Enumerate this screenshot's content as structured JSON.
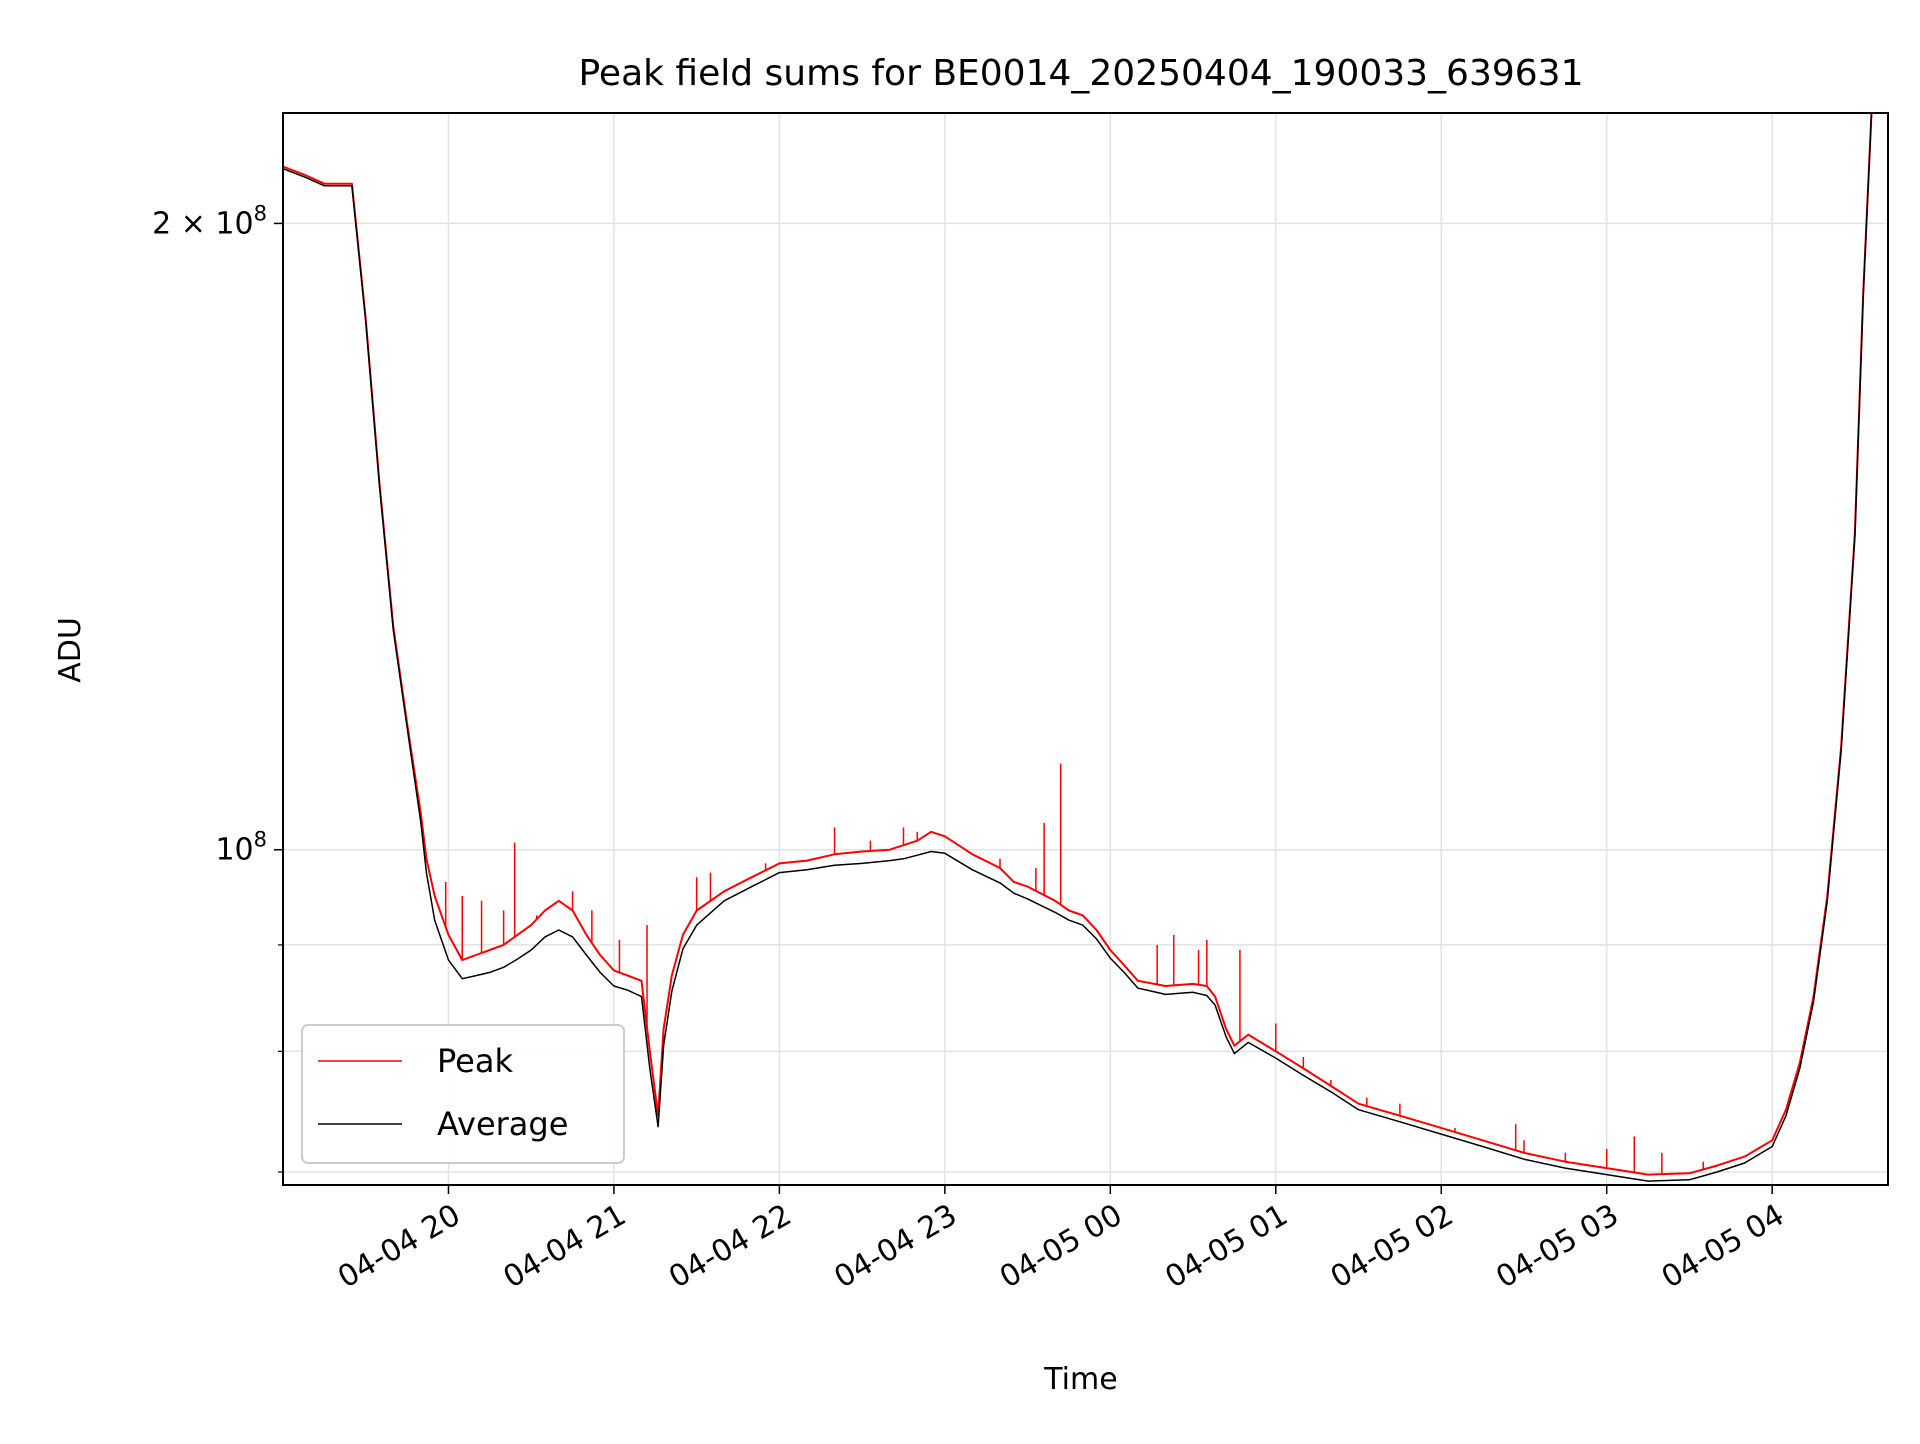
{
  "chart_data": {
    "type": "line",
    "title": "Peak field sums for BE0014_20250404_190033_639631",
    "xlabel": "Time",
    "ylabel": "ADU",
    "y_scale": "log",
    "xlim": [
      "2025-04-04 19:00",
      "2025-04-05 04:42"
    ],
    "ylim": [
      69000000,
      226000000
    ],
    "x_ticks": [
      {
        "value": "2025-04-04 20:00",
        "label": "04-04 20"
      },
      {
        "value": "2025-04-04 21:00",
        "label": "04-04 21"
      },
      {
        "value": "2025-04-04 22:00",
        "label": "04-04 22"
      },
      {
        "value": "2025-04-04 23:00",
        "label": "04-04 23"
      },
      {
        "value": "2025-04-05 00:00",
        "label": "04-05 00"
      },
      {
        "value": "2025-04-05 01:00",
        "label": "04-05 01"
      },
      {
        "value": "2025-04-05 02:00",
        "label": "04-05 02"
      },
      {
        "value": "2025-04-05 03:00",
        "label": "04-05 03"
      },
      {
        "value": "2025-04-05 04:00",
        "label": "04-05 04"
      }
    ],
    "y_ticks_major": [
      {
        "value": 100000000,
        "base": "10",
        "exp": "8",
        "mantissa": ""
      },
      {
        "value": 200000000,
        "base": "10",
        "exp": "8",
        "mantissa": "2 × "
      }
    ],
    "y_ticks_minor": [
      70000000,
      80000000,
      90000000
    ],
    "grid": true,
    "legend_position": "lower-left",
    "series": [
      {
        "name": "Peak",
        "color": "#ff0000",
        "x": [
          "2025-04-04 19:00",
          "2025-04-04 19:08",
          "2025-04-04 19:15",
          "2025-04-04 19:22",
          "2025-04-04 19:25",
          "2025-04-04 19:30",
          "2025-04-04 19:35",
          "2025-04-04 19:40",
          "2025-04-04 19:45",
          "2025-04-04 19:50",
          "2025-04-04 19:52",
          "2025-04-04 19:55",
          "2025-04-04 20:00",
          "2025-04-04 20:05",
          "2025-04-04 20:10",
          "2025-04-04 20:15",
          "2025-04-04 20:20",
          "2025-04-04 20:25",
          "2025-04-04 20:30",
          "2025-04-04 20:35",
          "2025-04-04 20:40",
          "2025-04-04 20:45",
          "2025-04-04 20:50",
          "2025-04-04 20:55",
          "2025-04-04 21:00",
          "2025-04-04 21:05",
          "2025-04-04 21:10",
          "2025-04-04 21:13",
          "2025-04-04 21:16",
          "2025-04-04 21:18",
          "2025-04-04 21:21",
          "2025-04-04 21:25",
          "2025-04-04 21:30",
          "2025-04-04 21:40",
          "2025-04-04 21:50",
          "2025-04-04 22:00",
          "2025-04-04 22:10",
          "2025-04-04 22:20",
          "2025-04-04 22:30",
          "2025-04-04 22:40",
          "2025-04-04 22:45",
          "2025-04-04 22:50",
          "2025-04-04 22:55",
          "2025-04-04 23:00",
          "2025-04-04 23:10",
          "2025-04-04 23:20",
          "2025-04-04 23:25",
          "2025-04-04 23:30",
          "2025-04-04 23:40",
          "2025-04-04 23:45",
          "2025-04-04 23:50",
          "2025-04-04 23:55",
          "2025-04-05 00:00",
          "2025-04-05 00:05",
          "2025-04-05 00:10",
          "2025-04-05 00:20",
          "2025-04-05 00:30",
          "2025-04-05 00:35",
          "2025-04-05 00:38",
          "2025-04-05 00:42",
          "2025-04-05 00:45",
          "2025-04-05 00:50",
          "2025-04-05 01:00",
          "2025-04-05 01:10",
          "2025-04-05 01:20",
          "2025-04-05 01:30",
          "2025-04-05 01:45",
          "2025-04-05 02:00",
          "2025-04-05 02:15",
          "2025-04-05 02:30",
          "2025-04-05 02:45",
          "2025-04-05 03:00",
          "2025-04-05 03:15",
          "2025-04-05 03:30",
          "2025-04-05 03:40",
          "2025-04-05 03:50",
          "2025-04-05 04:00",
          "2025-04-05 04:05",
          "2025-04-05 04:10",
          "2025-04-05 04:15",
          "2025-04-05 04:20",
          "2025-04-05 04:25",
          "2025-04-05 04:30",
          "2025-04-05 04:33",
          "2025-04-05 04:36"
        ],
        "y": [
          213000000,
          211000000,
          209000000,
          209000000,
          209000000,
          180000000,
          150000000,
          128000000,
          115000000,
          104000000,
          99000000,
          95000000,
          91000000,
          88500000,
          89000000,
          89500000,
          90000000,
          91000000,
          92000000,
          93500000,
          94500000,
          93500000,
          91000000,
          89000000,
          87500000,
          87000000,
          86500000,
          80000000,
          74500000,
          82000000,
          87000000,
          91000000,
          93500000,
          95500000,
          97000000,
          98500000,
          98800000,
          99500000,
          99800000,
          100000000,
          100500000,
          101000000,
          102000000,
          101500000,
          99500000,
          98000000,
          96500000,
          96000000,
          94500000,
          93500000,
          93000000,
          91500000,
          89500000,
          88000000,
          86500000,
          86000000,
          86200000,
          86000000,
          85000000,
          82000000,
          80500000,
          81500000,
          80000000,
          78500000,
          77000000,
          75500000,
          74500000,
          73500000,
          72500000,
          71500000,
          70800000,
          70300000,
          69800000,
          69900000,
          70500000,
          71200000,
          72500000,
          75000000,
          79000000,
          85000000,
          95000000,
          112000000,
          142000000,
          185000000,
          226000000
        ]
      },
      {
        "name": "Average",
        "color": "#000000",
        "x": [
          "2025-04-04 19:00",
          "2025-04-04 19:08",
          "2025-04-04 19:15",
          "2025-04-04 19:22",
          "2025-04-04 19:25",
          "2025-04-04 19:30",
          "2025-04-04 19:35",
          "2025-04-04 19:40",
          "2025-04-04 19:45",
          "2025-04-04 19:50",
          "2025-04-04 19:52",
          "2025-04-04 19:55",
          "2025-04-04 20:00",
          "2025-04-04 20:05",
          "2025-04-04 20:10",
          "2025-04-04 20:15",
          "2025-04-04 20:20",
          "2025-04-04 20:25",
          "2025-04-04 20:30",
          "2025-04-04 20:35",
          "2025-04-04 20:40",
          "2025-04-04 20:45",
          "2025-04-04 20:50",
          "2025-04-04 20:55",
          "2025-04-04 21:00",
          "2025-04-04 21:05",
          "2025-04-04 21:10",
          "2025-04-04 21:13",
          "2025-04-04 21:16",
          "2025-04-04 21:18",
          "2025-04-04 21:21",
          "2025-04-04 21:25",
          "2025-04-04 21:30",
          "2025-04-04 21:40",
          "2025-04-04 21:50",
          "2025-04-04 22:00",
          "2025-04-04 22:10",
          "2025-04-04 22:20",
          "2025-04-04 22:30",
          "2025-04-04 22:40",
          "2025-04-04 22:45",
          "2025-04-04 22:50",
          "2025-04-04 22:55",
          "2025-04-04 23:00",
          "2025-04-04 23:10",
          "2025-04-04 23:20",
          "2025-04-04 23:25",
          "2025-04-04 23:30",
          "2025-04-04 23:40",
          "2025-04-04 23:45",
          "2025-04-04 23:50",
          "2025-04-04 23:55",
          "2025-04-05 00:00",
          "2025-04-05 00:05",
          "2025-04-05 00:10",
          "2025-04-05 00:20",
          "2025-04-05 00:30",
          "2025-04-05 00:35",
          "2025-04-05 00:38",
          "2025-04-05 00:42",
          "2025-04-05 00:45",
          "2025-04-05 00:50",
          "2025-04-05 01:00",
          "2025-04-05 01:10",
          "2025-04-05 01:20",
          "2025-04-05 01:30",
          "2025-04-05 01:45",
          "2025-04-05 02:00",
          "2025-04-05 02:15",
          "2025-04-05 02:30",
          "2025-04-05 02:45",
          "2025-04-05 03:00",
          "2025-04-05 03:15",
          "2025-04-05 03:30",
          "2025-04-05 03:40",
          "2025-04-05 03:50",
          "2025-04-05 04:00",
          "2025-04-05 04:05",
          "2025-04-05 04:10",
          "2025-04-05 04:15",
          "2025-04-05 04:20",
          "2025-04-05 04:25",
          "2025-04-05 04:30",
          "2025-04-05 04:33",
          "2025-04-05 04:36"
        ],
        "y": [
          212500000,
          210500000,
          208500000,
          208500000,
          208500000,
          179500000,
          149500000,
          127500000,
          114500000,
          103000000,
          97500000,
          92500000,
          88500000,
          86700000,
          87000000,
          87300000,
          87800000,
          88600000,
          89500000,
          90800000,
          91500000,
          90800000,
          89000000,
          87300000,
          86000000,
          85600000,
          85000000,
          78500000,
          73600000,
          80500000,
          85500000,
          89600000,
          92000000,
          94500000,
          96000000,
          97500000,
          97800000,
          98300000,
          98500000,
          98800000,
          99000000,
          99400000,
          99800000,
          99600000,
          97800000,
          96400000,
          95300000,
          94700000,
          93300000,
          92500000,
          92000000,
          90600000,
          88700000,
          87300000,
          85800000,
          85200000,
          85400000,
          85100000,
          84200000,
          81300000,
          79800000,
          80800000,
          79400000,
          77900000,
          76500000,
          75000000,
          74000000,
          73000000,
          72000000,
          71000000,
          70300000,
          69800000,
          69300000,
          69400000,
          70000000,
          70700000,
          72000000,
          74500000,
          78500000,
          84500000,
          94500000,
          111500000,
          141500000,
          184500000,
          226000000
        ]
      }
    ],
    "peak_spikes": [
      {
        "x": "2025-04-04 19:59",
        "y": 96500000
      },
      {
        "x": "2025-04-04 20:05",
        "y": 95000000
      },
      {
        "x": "2025-04-04 20:12",
        "y": 94500000
      },
      {
        "x": "2025-04-04 20:20",
        "y": 93500000
      },
      {
        "x": "2025-04-04 20:24",
        "y": 100800000
      },
      {
        "x": "2025-04-04 20:32",
        "y": 93000000
      },
      {
        "x": "2025-04-04 20:45",
        "y": 95500000
      },
      {
        "x": "2025-04-04 20:52",
        "y": 93500000
      },
      {
        "x": "2025-04-04 21:02",
        "y": 90500000
      },
      {
        "x": "2025-04-04 21:12",
        "y": 92000000
      },
      {
        "x": "2025-04-04 21:30",
        "y": 97000000
      },
      {
        "x": "2025-04-04 21:35",
        "y": 97500000
      },
      {
        "x": "2025-04-04 21:55",
        "y": 98500000
      },
      {
        "x": "2025-04-04 22:20",
        "y": 102500000
      },
      {
        "x": "2025-04-04 22:33",
        "y": 101000000
      },
      {
        "x": "2025-04-04 22:45",
        "y": 102500000
      },
      {
        "x": "2025-04-04 22:50",
        "y": 102000000
      },
      {
        "x": "2025-04-04 23:20",
        "y": 99000000
      },
      {
        "x": "2025-04-04 23:33",
        "y": 98000000
      },
      {
        "x": "2025-04-04 23:36",
        "y": 103000000
      },
      {
        "x": "2025-04-04 23:42",
        "y": 110000000
      },
      {
        "x": "2025-04-05 00:17",
        "y": 90000000
      },
      {
        "x": "2025-04-05 00:23",
        "y": 91000000
      },
      {
        "x": "2025-04-05 00:32",
        "y": 89500000
      },
      {
        "x": "2025-04-05 00:35",
        "y": 90500000
      },
      {
        "x": "2025-04-05 00:47",
        "y": 89500000
      },
      {
        "x": "2025-04-05 01:00",
        "y": 82500000
      },
      {
        "x": "2025-04-05 01:10",
        "y": 79500000
      },
      {
        "x": "2025-04-05 01:20",
        "y": 77500000
      },
      {
        "x": "2025-04-05 01:33",
        "y": 76000000
      },
      {
        "x": "2025-04-05 01:45",
        "y": 75500000
      },
      {
        "x": "2025-04-05 02:05",
        "y": 73500000
      },
      {
        "x": "2025-04-05 02:27",
        "y": 73800000
      },
      {
        "x": "2025-04-05 02:30",
        "y": 72500000
      },
      {
        "x": "2025-04-05 02:45",
        "y": 71500000
      },
      {
        "x": "2025-04-05 03:00",
        "y": 71800000
      },
      {
        "x": "2025-04-05 03:10",
        "y": 72800000
      },
      {
        "x": "2025-04-05 03:20",
        "y": 71500000
      },
      {
        "x": "2025-04-05 03:35",
        "y": 70800000
      }
    ]
  }
}
